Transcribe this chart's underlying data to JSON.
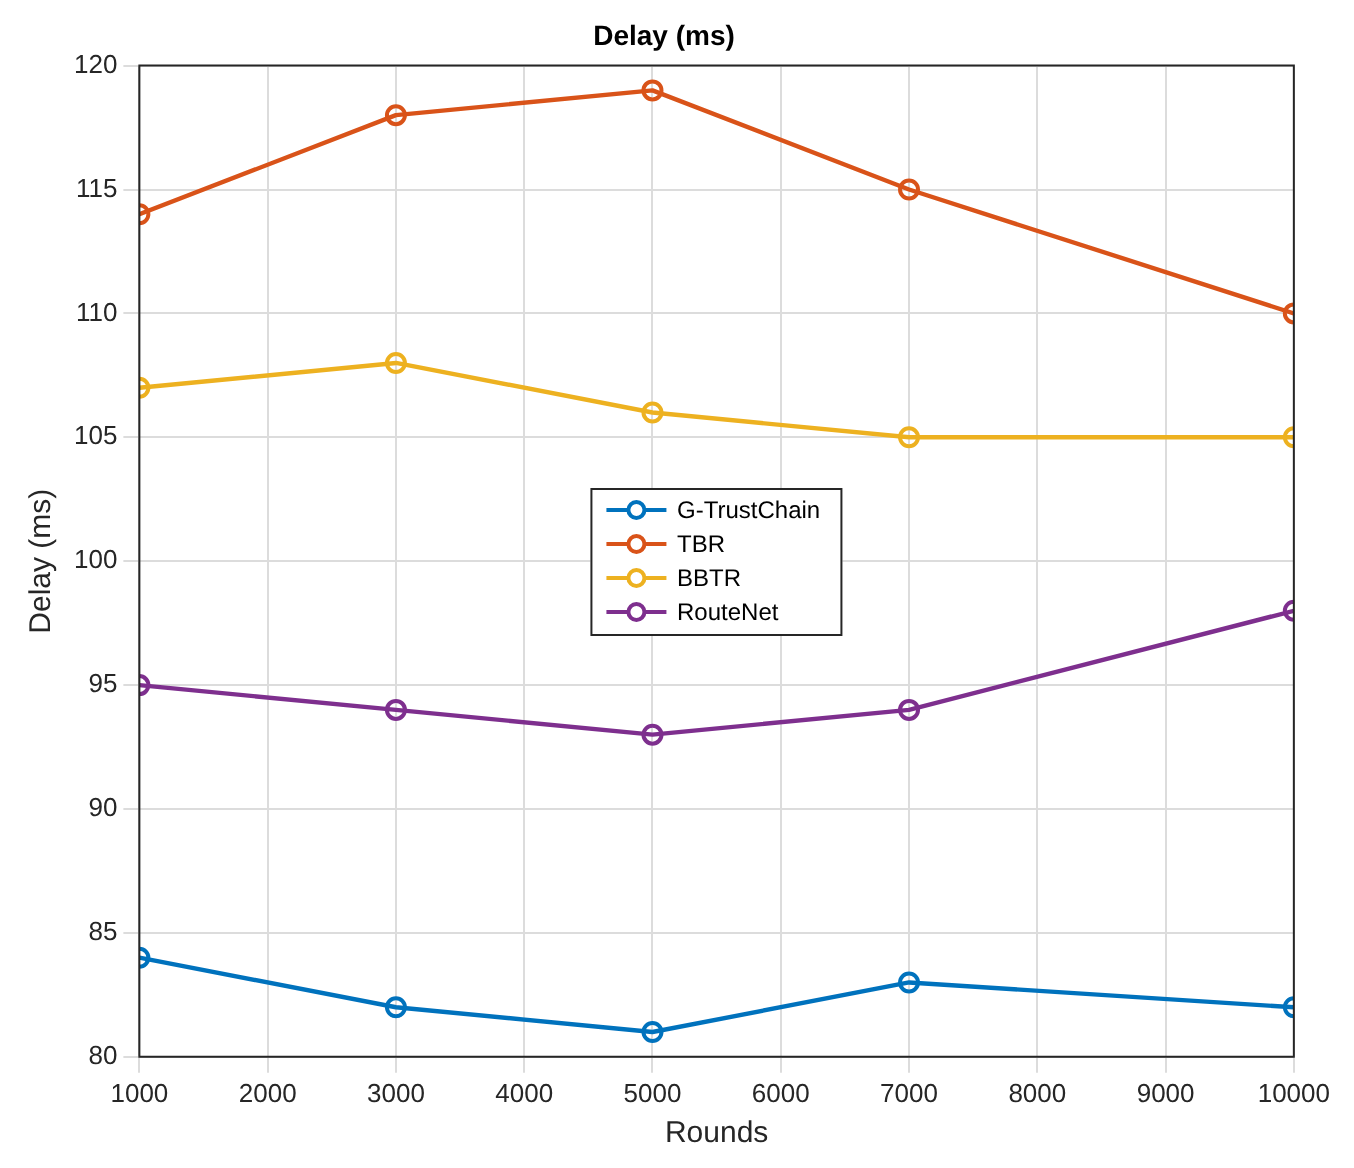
{
  "chart_data": {
    "type": "line",
    "title": "Delay (ms)",
    "xlabel": "Rounds",
    "ylabel": "Delay (ms)",
    "x": [
      1000,
      3000,
      5000,
      7000,
      10000
    ],
    "series": [
      {
        "name": "G-TrustChain",
        "color": "#0072bd",
        "values": [
          84,
          82,
          81,
          83,
          82
        ]
      },
      {
        "name": "TBR",
        "color": "#d95319",
        "values": [
          114,
          118,
          119,
          115,
          110
        ]
      },
      {
        "name": "BBTR",
        "color": "#edb120",
        "values": [
          107,
          108,
          106,
          105,
          105
        ]
      },
      {
        "name": "RouteNet",
        "color": "#7e2f8e",
        "values": [
          95,
          94,
          93,
          94,
          98
        ]
      }
    ],
    "xlim": [
      1000,
      10000
    ],
    "xticks": [
      1000,
      2000,
      3000,
      4000,
      5000,
      6000,
      7000,
      8000,
      9000,
      10000
    ],
    "ylim": [
      80,
      120
    ],
    "yticks": [
      80,
      85,
      90,
      95,
      100,
      105,
      110,
      115,
      120
    ],
    "grid": true,
    "legend": "center",
    "marker": "circle",
    "line_style": "solid"
  }
}
